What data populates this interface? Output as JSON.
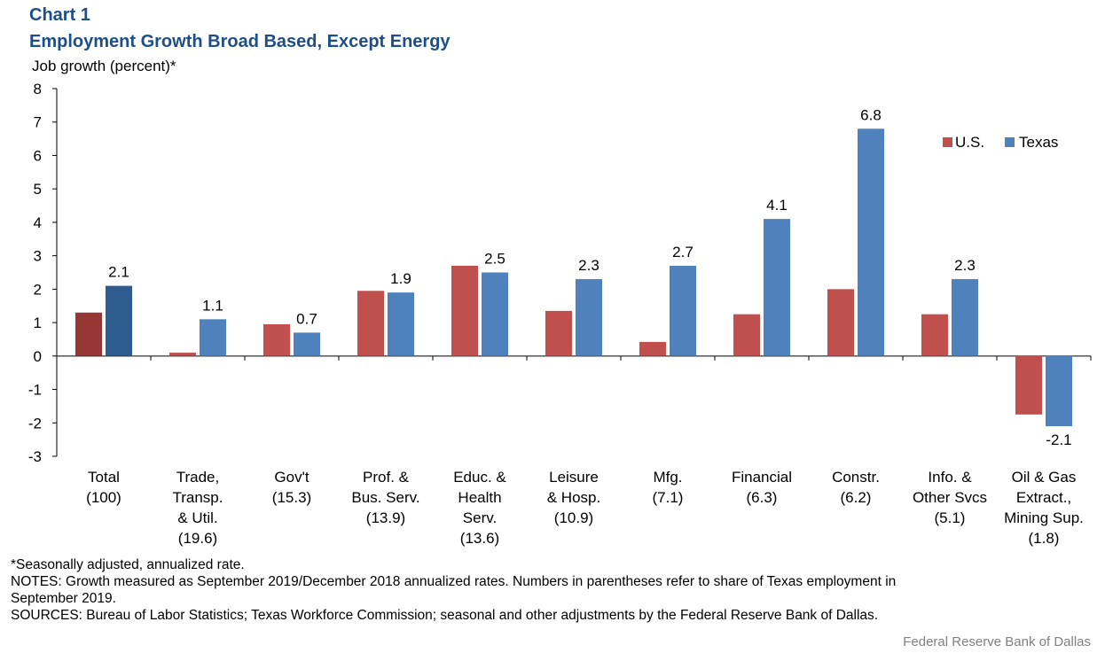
{
  "header": {
    "chart_number": "Chart 1",
    "title": "Employment Growth Broad Based, Except Energy"
  },
  "chart_data": {
    "type": "bar",
    "title": "Employment Growth Broad Based, Except Energy",
    "ylabel": "Job growth (percent)*",
    "xlabel": "",
    "ylim": [
      -3,
      8
    ],
    "yticks": [
      -3,
      -2,
      -1,
      0,
      1,
      2,
      3,
      4,
      5,
      6,
      7,
      8
    ],
    "grid": false,
    "legend_position": "top-right",
    "categories": [
      [
        "Total",
        "(100)"
      ],
      [
        "Trade,",
        "Transp.",
        "& Util.",
        "(19.6)"
      ],
      [
        "Gov't",
        "(15.3)"
      ],
      [
        "Prof. &",
        "Bus. Serv.",
        "(13.9)"
      ],
      [
        "Educ. &",
        "Health",
        "Serv.",
        "(13.6)"
      ],
      [
        "Leisure",
        "& Hosp.",
        "(10.9)"
      ],
      [
        "Mfg.",
        "(7.1)"
      ],
      [
        "Financial",
        "(6.3)"
      ],
      [
        "Constr.",
        "(6.2)"
      ],
      [
        "Info. &",
        "Other Svcs",
        "(5.1)"
      ],
      [
        "Oil & Gas",
        "Extract.,",
        "Mining Sup.",
        "(1.8)"
      ]
    ],
    "series": [
      {
        "name": "U.S.",
        "color": "#c0504d",
        "highlight_color": "#953735",
        "values": [
          1.3,
          0.1,
          0.95,
          1.95,
          2.7,
          1.35,
          0.42,
          1.25,
          2.0,
          1.25,
          -1.75
        ]
      },
      {
        "name": "Texas",
        "color": "#4f81bd",
        "highlight_color": "#2f5c8f",
        "values": [
          2.1,
          1.1,
          0.7,
          1.9,
          2.5,
          2.3,
          2.7,
          4.1,
          6.8,
          2.3,
          -2.1
        ],
        "data_labels": [
          "2.1",
          "1.1",
          "0.7",
          "1.9",
          "2.5",
          "2.3",
          "2.7",
          "4.1",
          "6.8",
          "2.3",
          "-2.1"
        ]
      }
    ]
  },
  "notes": {
    "footnote": "*Seasonally adjusted, annualized rate.",
    "notes_line1": "NOTES: Growth measured as September 2019/December 2018 annualized rates. Numbers in parentheses refer to share of Texas employment in",
    "notes_line2": "September 2019.",
    "sources": "SOURCES: Bureau of Labor Statistics; Texas Workforce Commission; seasonal and other adjustments by the Federal Reserve Bank of Dallas."
  },
  "credit": "Federal Reserve Bank of Dallas"
}
